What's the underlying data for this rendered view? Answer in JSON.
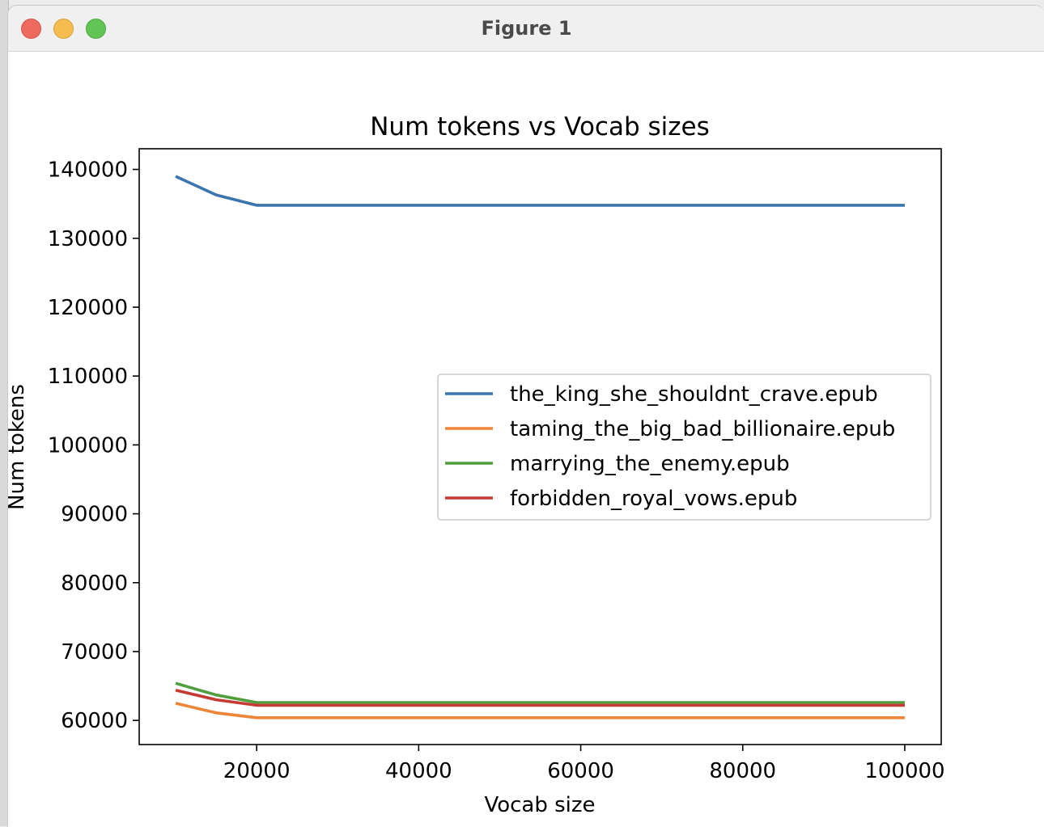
{
  "window": {
    "title": "Figure 1"
  },
  "chart_data": {
    "type": "line",
    "title": "Num tokens vs Vocab sizes",
    "xlabel": "Vocab size",
    "ylabel": "Num tokens",
    "xlim": [
      5500,
      104500
    ],
    "ylim": [
      56500,
      143000
    ],
    "xticks": [
      20000,
      40000,
      60000,
      80000,
      100000
    ],
    "yticks": [
      60000,
      70000,
      80000,
      90000,
      100000,
      110000,
      120000,
      130000,
      140000
    ],
    "x": [
      10000,
      15000,
      20000,
      25000,
      30000,
      40000,
      50000,
      60000,
      70000,
      80000,
      90000,
      100000
    ],
    "series": [
      {
        "name": "the_king_she_shouldnt_crave.epub",
        "color": "#3a75af",
        "values": [
          139000,
          136300,
          134800,
          134800,
          134800,
          134800,
          134800,
          134800,
          134800,
          134800,
          134800,
          134800
        ]
      },
      {
        "name": "taming_the_big_bad_billionaire.epub",
        "color": "#ef8536",
        "values": [
          62500,
          61100,
          60400,
          60400,
          60400,
          60400,
          60400,
          60400,
          60400,
          60400,
          60400,
          60400
        ]
      },
      {
        "name": "marrying_the_enemy.epub",
        "color": "#519e3e",
        "values": [
          65400,
          63700,
          62600,
          62600,
          62600,
          62600,
          62600,
          62600,
          62600,
          62600,
          62600,
          62600
        ]
      },
      {
        "name": "forbidden_royal_vows.epub",
        "color": "#c53a32",
        "values": [
          64400,
          63000,
          62200,
          62200,
          62200,
          62200,
          62200,
          62200,
          62200,
          62200,
          62200,
          62200
        ]
      }
    ],
    "legend_position": "center-right",
    "grid": false
  }
}
